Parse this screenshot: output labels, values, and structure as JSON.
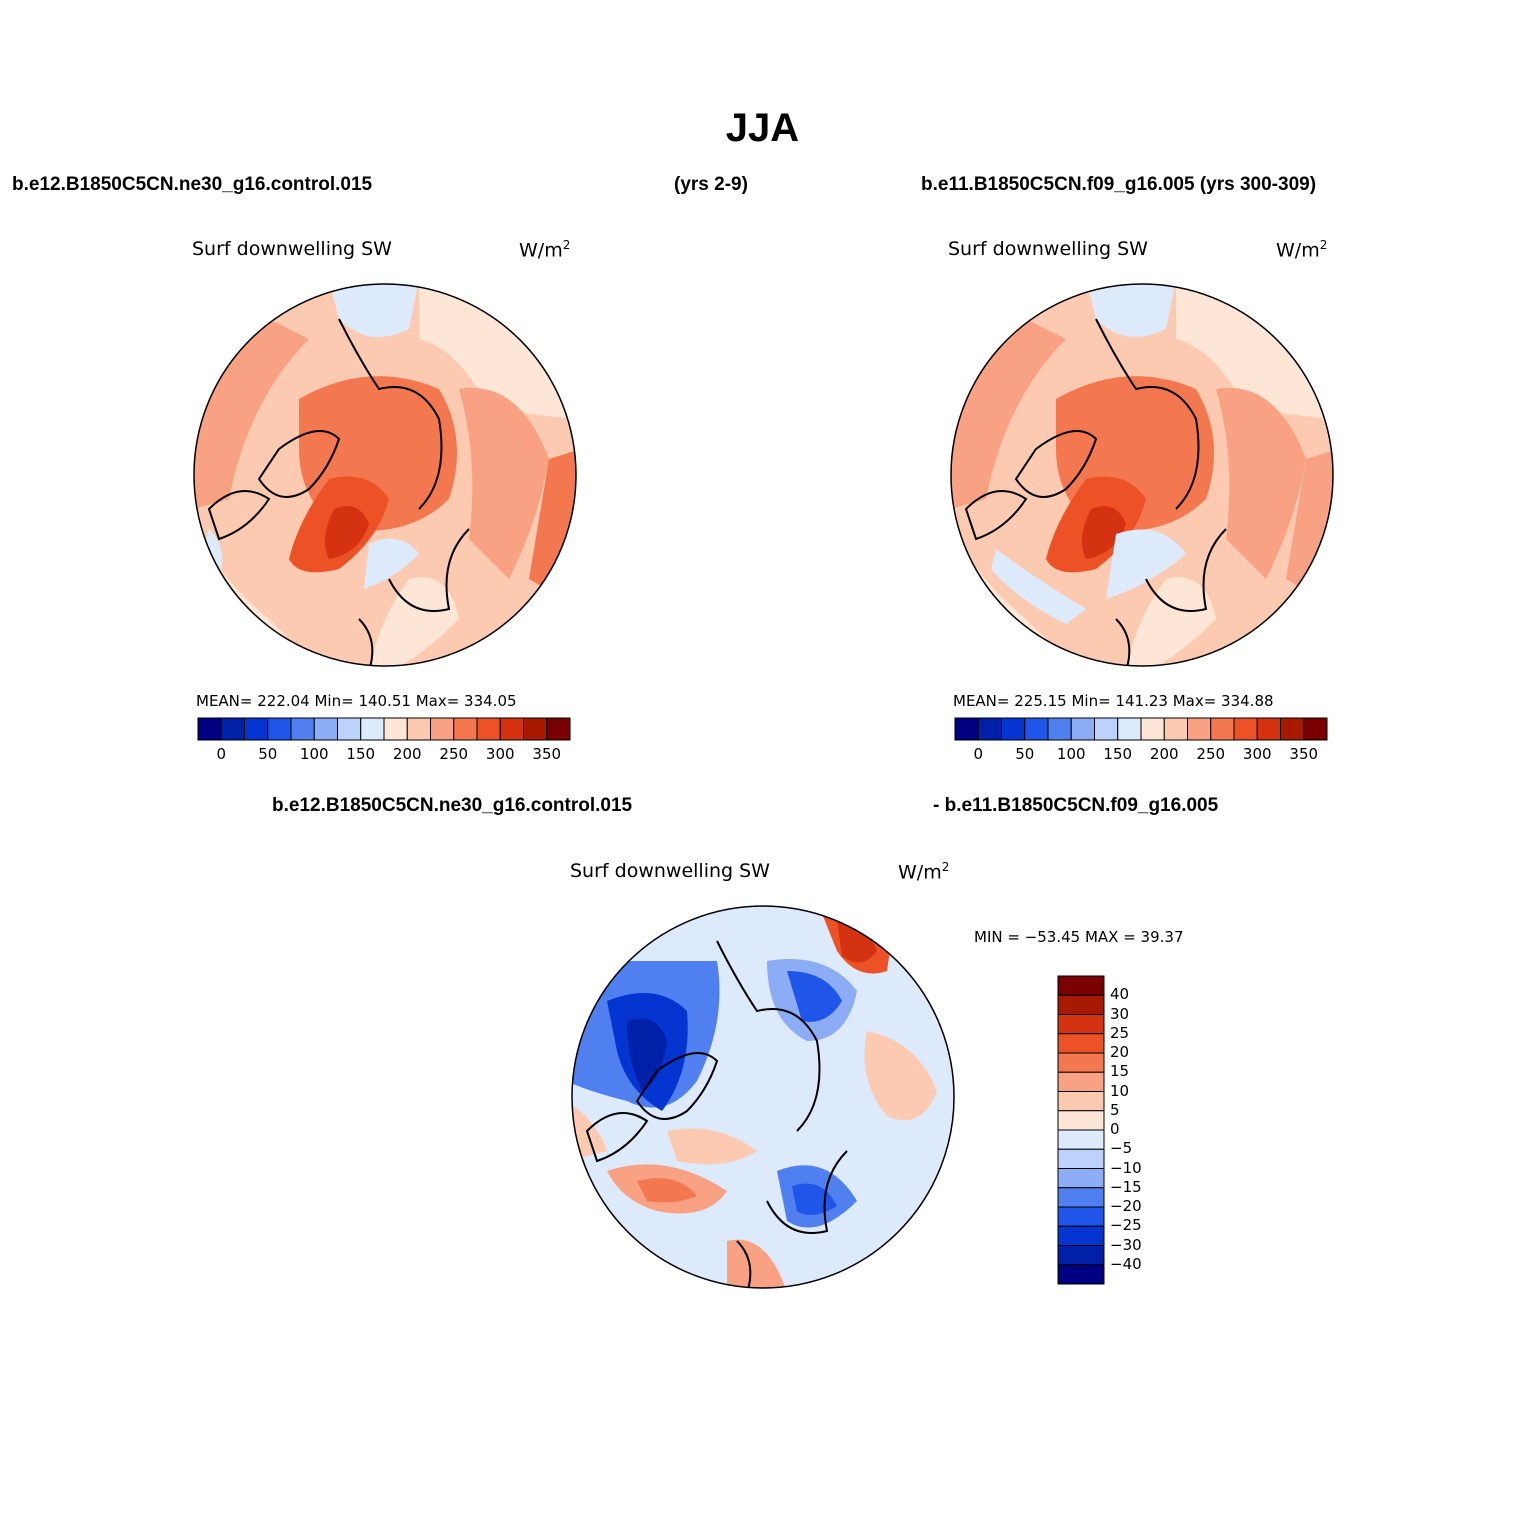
{
  "title": "JJA",
  "panels": {
    "left": {
      "case": "b.e12.B1850C5CN.ne30_g16.control.015",
      "years": "(yrs 2-9)",
      "variable": "Surf downwelling SW",
      "units_base": "W/m",
      "units_exp": "2",
      "stats": "MEAN= 222.04   Min= 140.51   Max= 334.05"
    },
    "right": {
      "case": "b.e11.B1850C5CN.f09_g16.005 (yrs 300-309)",
      "variable": "Surf downwelling SW",
      "units_base": "W/m",
      "units_exp": "2",
      "stats": "MEAN= 225.15   Min= 141.23   Max= 334.88"
    },
    "diff": {
      "case_a": "b.e12.B1850C5CN.ne30_g16.control.015",
      "case_b": "- b.e11.B1850C5CN.f09_g16.005",
      "variable": "Surf downwelling SW",
      "units_base": "W/m",
      "units_exp": "2",
      "minmax": "MIN = −53.45 MAX =   39.37"
    }
  },
  "colors": {
    "abs_scale": [
      "#000080",
      "#0020a8",
      "#0535d0",
      "#1f55e8",
      "#5080f0",
      "#8cadf5",
      "#bcd2fa",
      "#ddeafc",
      "#fde6d6",
      "#fccab0",
      "#f9a283",
      "#f4784f",
      "#ec5226",
      "#d43210",
      "#a81a00",
      "#7a0000"
    ],
    "diff_scale": [
      "#7a0000",
      "#a81a00",
      "#d43210",
      "#ec5226",
      "#f4784f",
      "#f9a283",
      "#fccab0",
      "#fde6d6",
      "#ddeafc",
      "#bcd2fa",
      "#8cadf5",
      "#5080f0",
      "#1f55e8",
      "#0535d0",
      "#0020a8",
      "#000080"
    ]
  },
  "chart_data": [
    {
      "type": "heatmap",
      "projection": "north polar stereographic",
      "title": "Surf downwelling SW",
      "case": "b.e12.B1850C5CN.ne30_g16.control.015 (yrs 2-9)",
      "units": "W/m2",
      "mean": 222.04,
      "min": 140.51,
      "max": 334.05,
      "colorbar_levels": [
        0,
        25,
        50,
        75,
        100,
        125,
        150,
        175,
        200,
        225,
        250,
        275,
        300,
        325,
        350
      ],
      "colorbar_ticks": [
        "0",
        "50",
        "100",
        "150",
        "200",
        "250",
        "300",
        "350"
      ]
    },
    {
      "type": "heatmap",
      "projection": "north polar stereographic",
      "title": "Surf downwelling SW",
      "case": "b.e11.B1850C5CN.f09_g16.005 (yrs 300-309)",
      "units": "W/m2",
      "mean": 225.15,
      "min": 141.23,
      "max": 334.88,
      "colorbar_levels": [
        0,
        25,
        50,
        75,
        100,
        125,
        150,
        175,
        200,
        225,
        250,
        275,
        300,
        325,
        350
      ],
      "colorbar_ticks": [
        "0",
        "50",
        "100",
        "150",
        "200",
        "250",
        "300",
        "350"
      ]
    },
    {
      "type": "heatmap",
      "projection": "north polar stereographic",
      "title": "Surf downwelling SW",
      "case": "b.e12.B1850C5CN.ne30_g16.control.015 - b.e11.B1850C5CN.f09_g16.005",
      "units": "W/m2",
      "min": -53.45,
      "max": 39.37,
      "colorbar_levels": [
        40,
        30,
        25,
        20,
        15,
        10,
        5,
        0,
        -5,
        -10,
        -15,
        -20,
        -25,
        -30,
        -40
      ],
      "colorbar_ticks": [
        "40",
        "30",
        "25",
        "20",
        "15",
        "10",
        "5",
        "0",
        "−5",
        "−10",
        "−15",
        "−20",
        "−25",
        "−30",
        "−40"
      ]
    }
  ]
}
